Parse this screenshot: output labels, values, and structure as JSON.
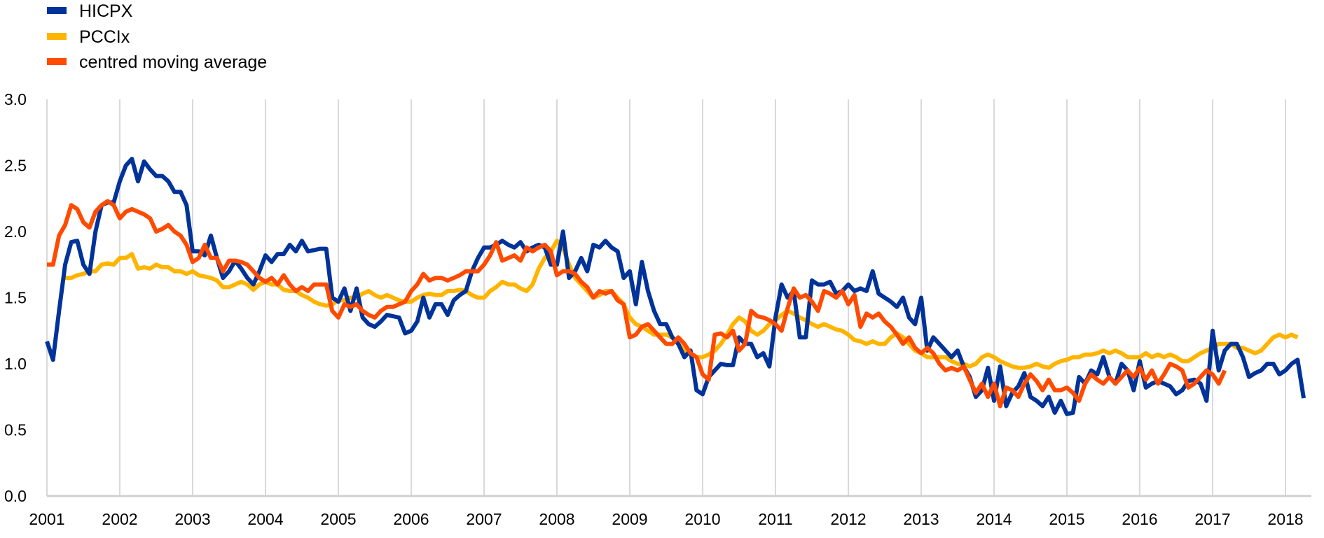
{
  "chart_data": {
    "type": "line",
    "title": "",
    "xlabel": "",
    "ylabel": "",
    "ylim": [
      0,
      3
    ],
    "yticks": [
      "0.0",
      "0.5",
      "1.0",
      "1.5",
      "2.0",
      "2.5",
      "3.0"
    ],
    "xticks": [
      "2001",
      "2002",
      "2003",
      "2004",
      "2005",
      "2006",
      "2007",
      "2008",
      "2009",
      "2010",
      "2011",
      "2012",
      "2013",
      "2014",
      "2015",
      "2016",
      "2017",
      "2018"
    ],
    "frequency": "monthly",
    "legend_position": "top-left",
    "grid": "vertical",
    "series": [
      {
        "name": "HICPX",
        "color": "#003399",
        "start": "2001-01",
        "values": [
          1.17,
          1.03,
          1.4,
          1.75,
          1.92,
          1.93,
          1.75,
          1.68,
          2.0,
          2.2,
          2.22,
          2.22,
          2.38,
          2.5,
          2.55,
          2.38,
          2.53,
          2.47,
          2.42,
          2.42,
          2.38,
          2.3,
          2.3,
          2.2,
          1.85,
          1.85,
          1.82,
          1.97,
          1.8,
          1.65,
          1.7,
          1.78,
          1.72,
          1.65,
          1.6,
          1.7,
          1.82,
          1.77,
          1.83,
          1.83,
          1.9,
          1.85,
          1.93,
          1.85,
          1.86,
          1.87,
          1.87,
          1.5,
          1.47,
          1.57,
          1.4,
          1.57,
          1.35,
          1.3,
          1.28,
          1.32,
          1.37,
          1.36,
          1.35,
          1.23,
          1.25,
          1.32,
          1.5,
          1.35,
          1.45,
          1.45,
          1.37,
          1.48,
          1.52,
          1.55,
          1.7,
          1.8,
          1.88,
          1.88,
          1.9,
          1.93,
          1.9,
          1.88,
          1.92,
          1.85,
          1.88,
          1.9,
          1.88,
          1.75,
          1.75,
          2.0,
          1.65,
          1.7,
          1.8,
          1.7,
          1.9,
          1.88,
          1.93,
          1.88,
          1.85,
          1.65,
          1.7,
          1.45,
          1.77,
          1.55,
          1.4,
          1.3,
          1.3,
          1.2,
          1.15,
          1.05,
          1.1,
          0.8,
          0.77,
          0.9,
          0.95,
          1.0,
          0.99,
          0.99,
          1.2,
          1.15,
          1.15,
          1.05,
          1.08,
          0.98,
          1.35,
          1.6,
          1.5,
          1.55,
          1.2,
          1.2,
          1.63,
          1.6,
          1.6,
          1.62,
          1.53,
          1.55,
          1.6,
          1.55,
          1.57,
          1.55,
          1.7,
          1.53,
          1.5,
          1.47,
          1.43,
          1.5,
          1.35,
          1.3,
          1.5,
          1.1,
          1.2,
          1.15,
          1.1,
          1.05,
          1.1,
          0.98,
          0.9,
          0.75,
          0.8,
          0.97,
          0.72,
          0.98,
          0.68,
          0.78,
          0.83,
          0.93,
          0.75,
          0.72,
          0.68,
          0.75,
          0.63,
          0.72,
          0.62,
          0.63,
          0.9,
          0.85,
          0.95,
          0.92,
          1.05,
          0.9,
          0.85,
          1.0,
          0.95,
          0.8,
          1.02,
          0.82,
          0.85,
          0.87,
          0.85,
          0.83,
          0.77,
          0.8,
          0.87,
          0.88,
          0.85,
          0.72,
          1.25,
          0.95,
          1.1,
          1.15,
          1.15,
          1.05,
          0.9,
          0.93,
          0.95,
          1.0,
          1.0,
          0.92,
          0.95,
          1.0,
          1.03,
          0.74
        ]
      },
      {
        "name": "PCCIx",
        "color": "#ffb400",
        "start": "2001-04",
        "values": [
          1.65,
          1.65,
          1.67,
          1.68,
          1.7,
          1.7,
          1.75,
          1.76,
          1.75,
          1.8,
          1.8,
          1.83,
          1.72,
          1.73,
          1.72,
          1.75,
          1.73,
          1.73,
          1.7,
          1.7,
          1.68,
          1.7,
          1.67,
          1.66,
          1.65,
          1.63,
          1.58,
          1.58,
          1.6,
          1.62,
          1.6,
          1.56,
          1.6,
          1.62,
          1.6,
          1.6,
          1.56,
          1.55,
          1.55,
          1.52,
          1.5,
          1.47,
          1.45,
          1.44,
          1.45,
          1.48,
          1.48,
          1.5,
          1.5,
          1.53,
          1.55,
          1.52,
          1.5,
          1.52,
          1.5,
          1.48,
          1.47,
          1.47,
          1.5,
          1.52,
          1.53,
          1.52,
          1.52,
          1.55,
          1.55,
          1.56,
          1.55,
          1.52,
          1.5,
          1.5,
          1.55,
          1.58,
          1.62,
          1.6,
          1.6,
          1.57,
          1.55,
          1.6,
          1.72,
          1.8,
          1.85,
          1.93,
          1.88,
          1.75,
          1.65,
          1.6,
          1.55,
          1.5,
          1.52,
          1.55,
          1.55,
          1.5,
          1.45,
          1.35,
          1.3,
          1.28,
          1.25,
          1.22,
          1.22,
          1.22,
          1.2,
          1.15,
          1.1,
          1.08,
          1.05,
          1.05,
          1.07,
          1.1,
          1.15,
          1.22,
          1.3,
          1.35,
          1.32,
          1.25,
          1.22,
          1.25,
          1.3,
          1.33,
          1.37,
          1.4,
          1.38,
          1.35,
          1.33,
          1.3,
          1.28,
          1.3,
          1.28,
          1.26,
          1.25,
          1.22,
          1.18,
          1.17,
          1.15,
          1.17,
          1.15,
          1.15,
          1.2,
          1.23,
          1.2,
          1.15,
          1.1,
          1.08,
          1.05,
          1.05,
          1.05,
          1.05,
          1.02,
          1.0,
          1.0,
          0.98,
          1.0,
          1.05,
          1.07,
          1.05,
          1.02,
          1.0,
          0.98,
          0.97,
          0.97,
          0.98,
          1.0,
          0.98,
          0.97,
          1.0,
          1.02,
          1.03,
          1.05,
          1.05,
          1.07,
          1.07,
          1.08,
          1.1,
          1.08,
          1.1,
          1.08,
          1.05,
          1.05,
          1.05,
          1.08,
          1.05,
          1.07,
          1.05,
          1.07,
          1.05,
          1.02,
          1.02,
          1.05,
          1.08,
          1.1,
          1.12,
          1.15,
          1.15,
          1.15,
          1.12,
          1.12,
          1.1,
          1.08,
          1.1,
          1.15,
          1.2,
          1.22,
          1.2,
          1.22,
          1.2
        ]
      },
      {
        "name": "centred moving average",
        "color": "#ff4b00",
        "start": "2001-01",
        "values": [
          1.75,
          1.75,
          1.97,
          2.05,
          2.2,
          2.17,
          2.07,
          2.03,
          2.15,
          2.2,
          2.23,
          2.2,
          2.1,
          2.15,
          2.17,
          2.15,
          2.13,
          2.1,
          2.0,
          2.02,
          2.05,
          2.0,
          1.97,
          1.9,
          1.77,
          1.8,
          1.9,
          1.8,
          1.8,
          1.7,
          1.78,
          1.78,
          1.77,
          1.75,
          1.7,
          1.65,
          1.62,
          1.65,
          1.6,
          1.67,
          1.6,
          1.55,
          1.58,
          1.55,
          1.6,
          1.6,
          1.6,
          1.4,
          1.35,
          1.45,
          1.43,
          1.45,
          1.4,
          1.37,
          1.35,
          1.4,
          1.43,
          1.43,
          1.45,
          1.47,
          1.55,
          1.6,
          1.68,
          1.63,
          1.65,
          1.65,
          1.63,
          1.65,
          1.67,
          1.7,
          1.7,
          1.7,
          1.75,
          1.82,
          1.92,
          1.78,
          1.8,
          1.82,
          1.78,
          1.88,
          1.85,
          1.88,
          1.9,
          1.85,
          1.67,
          1.7,
          1.7,
          1.68,
          1.62,
          1.58,
          1.5,
          1.55,
          1.53,
          1.55,
          1.48,
          1.45,
          1.2,
          1.22,
          1.28,
          1.3,
          1.25,
          1.2,
          1.15,
          1.15,
          1.2,
          1.15,
          1.08,
          1.05,
          0.92,
          0.88,
          1.22,
          1.23,
          1.2,
          1.25,
          1.1,
          1.15,
          1.4,
          1.36,
          1.35,
          1.33,
          1.3,
          1.25,
          1.42,
          1.57,
          1.5,
          1.52,
          1.47,
          1.4,
          1.55,
          1.53,
          1.5,
          1.55,
          1.45,
          1.52,
          1.28,
          1.38,
          1.35,
          1.38,
          1.32,
          1.28,
          1.22,
          1.15,
          1.2,
          1.12,
          1.08,
          1.12,
          1.08,
          1.0,
          0.95,
          0.97,
          0.95,
          0.98,
          0.88,
          0.78,
          0.85,
          0.75,
          0.85,
          0.68,
          0.82,
          0.8,
          0.75,
          0.85,
          0.92,
          0.87,
          0.8,
          0.88,
          0.8,
          0.8,
          0.82,
          0.78,
          0.72,
          0.85,
          0.92,
          0.88,
          0.85,
          0.9,
          0.85,
          0.9,
          0.95,
          0.9,
          0.97,
          0.88,
          0.95,
          0.85,
          0.92,
          1.0,
          0.98,
          0.95,
          0.82,
          0.85,
          0.9,
          0.95,
          0.92,
          0.85,
          0.95
        ]
      }
    ]
  }
}
